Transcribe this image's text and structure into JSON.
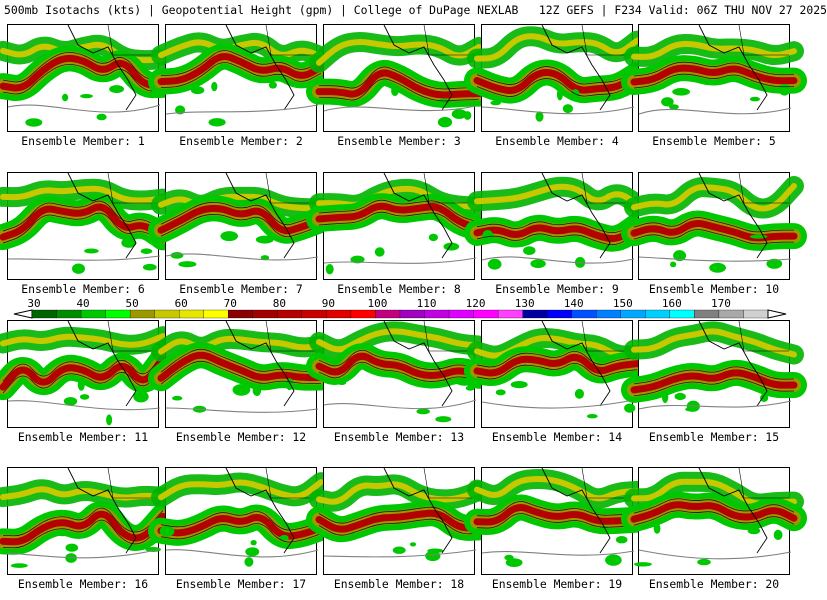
{
  "header": {
    "title": "500mb Isotachs (kts) | Geopotential Height (gpm) | College of DuPage NEXLAB   12Z GEFS | F234 Valid: 06Z THU NOV 27 2025"
  },
  "members": [
    {
      "label": "Ensemble Member: 1"
    },
    {
      "label": "Ensemble Member: 2"
    },
    {
      "label": "Ensemble Member: 3"
    },
    {
      "label": "Ensemble Member: 4"
    },
    {
      "label": "Ensemble Member: 5"
    },
    {
      "label": "Ensemble Member: 6"
    },
    {
      "label": "Ensemble Member: 7"
    },
    {
      "label": "Ensemble Member: 8"
    },
    {
      "label": "Ensemble Member: 9"
    },
    {
      "label": "Ensemble Member: 10"
    },
    {
      "label": "Ensemble Member: 11"
    },
    {
      "label": "Ensemble Member: 12"
    },
    {
      "label": "Ensemble Member: 13"
    },
    {
      "label": "Ensemble Member: 14"
    },
    {
      "label": "Ensemble Member: 15"
    },
    {
      "label": "Ensemble Member: 16"
    },
    {
      "label": "Ensemble Member: 17"
    },
    {
      "label": "Ensemble Member: 18"
    },
    {
      "label": "Ensemble Member: 19"
    },
    {
      "label": "Ensemble Member: 20"
    }
  ],
  "colorbar": {
    "ticks": [
      "30",
      "40",
      "50",
      "60",
      "70",
      "80",
      "90",
      "100",
      "110",
      "120",
      "130",
      "140",
      "150",
      "160",
      "170"
    ],
    "colors": [
      "#006400",
      "#008c00",
      "#00c800",
      "#00ff00",
      "#9a9a00",
      "#c8c800",
      "#e6e600",
      "#ffff00",
      "#8b0000",
      "#a00000",
      "#b40000",
      "#c80000",
      "#e00000",
      "#ff0000",
      "#c00080",
      "#a000c0",
      "#c000e0",
      "#e000ff",
      "#ff00ff",
      "#ff40ff",
      "#0000a0",
      "#0000ff",
      "#0050ff",
      "#0080ff",
      "#00a8ff",
      "#00d0ff",
      "#00ffff",
      "#808080",
      "#a8a8a8",
      "#d0d0d0"
    ]
  }
}
